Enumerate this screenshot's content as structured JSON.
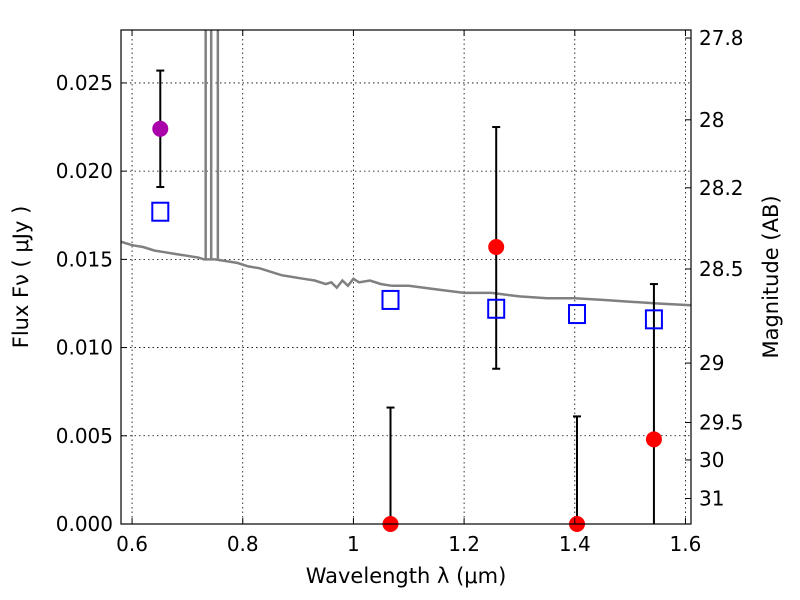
{
  "chart_data": {
    "type": "scatter",
    "xlabel": "Wavelength  λ (μm)",
    "ylabel": "Flux  Fν  ( μJy )",
    "y2label": "Magnitude (AB)",
    "xlim": [
      0.58,
      1.61
    ],
    "ylim": [
      0.0,
      0.028
    ],
    "x_ticks": [
      {
        "value": 0.6,
        "label": "0.6"
      },
      {
        "value": 0.8,
        "label": "0.8"
      },
      {
        "value": 1.0,
        "label": "1"
      },
      {
        "value": 1.2,
        "label": "1.2"
      },
      {
        "value": 1.4,
        "label": "1.4"
      },
      {
        "value": 1.6,
        "label": "1.6"
      }
    ],
    "y_ticks": [
      {
        "value": 0.0,
        "label": "0.000"
      },
      {
        "value": 0.005,
        "label": "0.005"
      },
      {
        "value": 0.01,
        "label": "0.010"
      },
      {
        "value": 0.015,
        "label": "0.015"
      },
      {
        "value": 0.02,
        "label": "0.020"
      },
      {
        "value": 0.025,
        "label": "0.025"
      }
    ],
    "y2_ticks": [
      {
        "mag": 27.8,
        "label": "27.8"
      },
      {
        "mag": 28.0,
        "label": "28"
      },
      {
        "mag": 28.2,
        "label": "28.2"
      },
      {
        "mag": 28.5,
        "label": "28.5"
      },
      {
        "mag": 29.0,
        "label": "29"
      },
      {
        "mag": 29.5,
        "label": "29.5"
      },
      {
        "mag": 30.0,
        "label": "30"
      },
      {
        "mag": 31.0,
        "label": "31"
      }
    ],
    "grid": true,
    "colors": {
      "model": "#808080",
      "observed_red": "#ff0000",
      "observed_magenta": "#aa00aa",
      "model_phot": "#0000ff",
      "errorbar": "#000000"
    },
    "series": [
      {
        "name": "model spectrum",
        "kind": "line",
        "x": [
          0.58,
          0.6,
          0.62,
          0.64,
          0.66,
          0.68,
          0.7,
          0.72,
          0.73,
          0.75,
          0.77,
          0.79,
          0.81,
          0.83,
          0.85,
          0.87,
          0.89,
          0.91,
          0.93,
          0.95,
          0.96,
          0.97,
          0.98,
          0.99,
          1.0,
          1.01,
          1.03,
          1.05,
          1.07,
          1.1,
          1.15,
          1.2,
          1.25,
          1.3,
          1.35,
          1.4,
          1.45,
          1.5,
          1.55,
          1.61
        ],
        "y": [
          0.016,
          0.0158,
          0.0157,
          0.0155,
          0.0154,
          0.0153,
          0.0152,
          0.0151,
          0.015,
          0.015,
          0.0149,
          0.0148,
          0.0146,
          0.0145,
          0.0143,
          0.0141,
          0.014,
          0.0139,
          0.0138,
          0.0136,
          0.0137,
          0.0134,
          0.0138,
          0.0135,
          0.0139,
          0.0137,
          0.0138,
          0.0136,
          0.0135,
          0.0135,
          0.0133,
          0.0131,
          0.0131,
          0.0129,
          0.0128,
          0.0128,
          0.0127,
          0.0126,
          0.0125,
          0.0124
        ]
      },
      {
        "name": "emission lines",
        "kind": "spikes",
        "x": [
          0.733,
          0.743,
          0.755
        ],
        "y_top": 0.028
      },
      {
        "name": "observed flux",
        "kind": "points_errorbars",
        "points": [
          {
            "x": 0.651,
            "y": 0.0224,
            "err_low": 0.0191,
            "err_high": 0.0257,
            "color": "#aa00aa"
          },
          {
            "x": 1.067,
            "y": 0.0,
            "err_low": 0.0,
            "err_high": 0.0066,
            "color": "#ff0000"
          },
          {
            "x": 1.258,
            "y": 0.0157,
            "err_low": 0.0088,
            "err_high": 0.0225,
            "color": "#ff0000"
          },
          {
            "x": 1.404,
            "y": 0.0,
            "err_low": 0.0,
            "err_high": 0.0061,
            "color": "#ff0000"
          },
          {
            "x": 1.543,
            "y": 0.0048,
            "err_low": 0.0,
            "err_high": 0.0136,
            "color": "#ff0000"
          }
        ]
      },
      {
        "name": "model photometry",
        "kind": "open_squares",
        "x": [
          0.651,
          1.067,
          1.258,
          1.404,
          1.543
        ],
        "y": [
          0.0177,
          0.0127,
          0.0122,
          0.0119,
          0.0116
        ]
      }
    ]
  }
}
